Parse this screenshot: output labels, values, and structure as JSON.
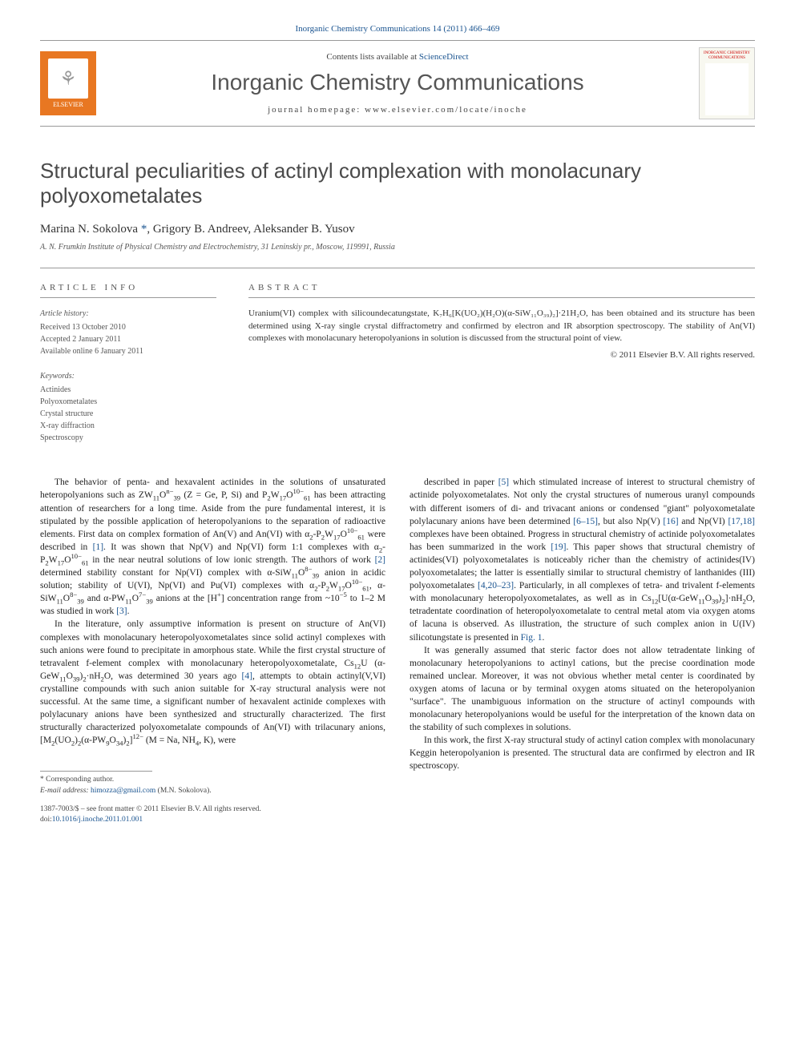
{
  "top_link": {
    "journal": "Inorganic Chemistry Communications",
    "citation": "14 (2011) 466–469"
  },
  "header": {
    "contents_prefix": "Contents lists available at ",
    "contents_link": "ScienceDirect",
    "journal_name": "Inorganic Chemistry Communications",
    "homepage_label": "journal homepage: ",
    "homepage_url": "www.elsevier.com/locate/inoche",
    "elsevier_label": "ELSEVIER",
    "cover_title": "INORGANIC CHEMISTRY COMMUNICATIONS"
  },
  "article": {
    "title": "Structural peculiarities of actinyl complexation with monolacunary polyoxometalates",
    "authors_html": "Marina N. Sokolova *, Grigory B. Andreev, Aleksander B. Yusov",
    "author_1": "Marina N. Sokolova",
    "author_2": "Grigory B. Andreev",
    "author_3": "Aleksander B. Yusov",
    "affiliation": "A. N. Frumkin Institute of Physical Chemistry and Electrochemistry, 31 Leninskiy pr., Moscow, 119991, Russia"
  },
  "info": {
    "header": "ARTICLE INFO",
    "history_label": "Article history:",
    "received": "Received 13 October 2010",
    "accepted": "Accepted 2 January 2011",
    "online": "Available online 6 January 2011",
    "keywords_label": "Keywords:",
    "keywords": [
      "Actinides",
      "Polyoxometalates",
      "Crystal structure",
      "X-ray diffraction",
      "Spectroscopy"
    ]
  },
  "abstract": {
    "header": "ABSTRACT",
    "text": "Uranium(VI) complex with silicoundecatungstate, K₇H₆[K(UO₂)(H₂O)(α-SiW₁₁O₃₉)₂]·21H₂O, has been obtained and its structure has been determined using X-ray single crystal diffractometry and confirmed by electron and IR absorption spectroscopy. The stability of An(VI) complexes with monolacunary heteropolyanions in solution is discussed from the structural point of view.",
    "copyright": "© 2011 Elsevier B.V. All rights reserved."
  },
  "body": {
    "left": [
      "The behavior of penta- and hexavalent actinides in the solutions of unsaturated heteropolyanions such as ZW₁₁O₃₉ⁿ⁻ (Z = Ge, P, Si) and P₂W₁₇O₆₁¹⁰⁻ has been attracting attention of researchers for a long time. Aside from the pure fundamental interest, it is stipulated by the possible application of heteropolyanions to the separation of radioactive elements. First data on complex formation of An(V) and An(VI) with α₂-P₂W₁₇O₆₁¹⁰⁻ were described in [1]. It was shown that Np(V) and Np(VI) form 1:1 complexes with α₂-P₂W₁₇O₆₁¹⁰⁻ in the near neutral solutions of low ionic strength. The authors of work [2] determined stability constant for Np(VI) complex with α-SiW₁₁O₃₉⁸⁻ anion in acidic solution; stability of U(VI), Np(VI) and Pu(VI) complexes with α₂-P₂W₁₇O₆₁¹⁰⁻, α-SiW₁₁O₃₉⁸⁻ and α-PW₁₁O₃₉⁷⁻ anions at the [H⁺] concentration range from ~10⁻⁵ to 1–2 M was studied in work [3].",
      "In the literature, only assumptive information is present on structure of An(VI) complexes with monolacunary heteropolyoxometalates since solid actinyl complexes with such anions were found to precipitate in amorphous state. While the first crystal structure of tetravalent f-element complex with monolacunary heteropolyoxometalate, Cs₁₂U(α-GeW₁₁O₃₉)₂·nH₂O, was determined 30 years ago [4], attempts to obtain actinyl(V,VI) crystalline compounds with such anion suitable for X-ray structural analysis were not successful. At the same time, a significant number of hexavalent actinide complexes with polylacunary anions have been synthesized and structurally characterized. The first structurally characterized polyoxometalate compounds of An(VI) with trilacunary anions, [M₂(UO₂)₂(α-PW₉O₃₄)₂]¹²⁻ (M = Na, NH₄, K), were"
    ],
    "right": [
      "described in paper [5] which stimulated increase of interest to structural chemistry of actinide polyoxometalates. Not only the crystal structures of numerous uranyl compounds with different isomers of di- and trivacant anions or condensed \"giant\" polyoxometalate polylacunary anions have been determined [6–15], but also Np(V) [16] and Np(VI) [17,18] complexes have been obtained. Progress in structural chemistry of actinide polyoxometalates has been summarized in the work [19]. This paper shows that structural chemistry of actinides(VI) polyoxometalates is noticeably richer than the chemistry of actinides(IV) polyoxometalates; the latter is essentially similar to structural chemistry of lanthanides (III) polyoxometalates [4,20–23]. Particularly, in all complexes of tetra- and trivalent f-elements with monolacunary heteropolyoxometalates, as well as in Cs₁₂[U(α-GeW₁₁O₃₉)₂]·nH₂O, tetradentate coordination of heteropolyoxometalate to central metal atom via oxygen atoms of lacuna is observed. As illustration, the structure of such complex anion in U(IV) silicotungstate is presented in Fig. 1.",
      "It was generally assumed that steric factor does not allow tetradentate linking of monolacunary heteropolyanions to actinyl cations, but the precise coordination mode remained unclear. Moreover, it was not obvious whether metal center is coordinated by oxygen atoms of lacuna or by terminal oxygen atoms situated on the heteropolyanion \"surface\". The unambiguous information on the structure of actinyl compounds with monolacunary heteropolyanions would be useful for the interpretation of the known data on the stability of such complexes in solutions.",
      "In this work, the first X-ray structural study of actinyl cation complex with monolacunary Keggin heteropolyanion is presented. The structural data are confirmed by electron and IR spectroscopy."
    ]
  },
  "footnote": {
    "corresponding": "* Corresponding author.",
    "email_label": "E-mail address: ",
    "email": "himozza@gmail.com",
    "email_owner": " (M.N. Sokolova)."
  },
  "doi": {
    "issn": "1387-7003/$ – see front matter © 2011 Elsevier B.V. All rights reserved.",
    "doi_label": "doi:",
    "doi": "10.1016/j.inoche.2011.01.001"
  },
  "colors": {
    "link": "#1a5490",
    "elsevier_orange": "#e87722",
    "text": "#333333",
    "rule": "#999999"
  }
}
